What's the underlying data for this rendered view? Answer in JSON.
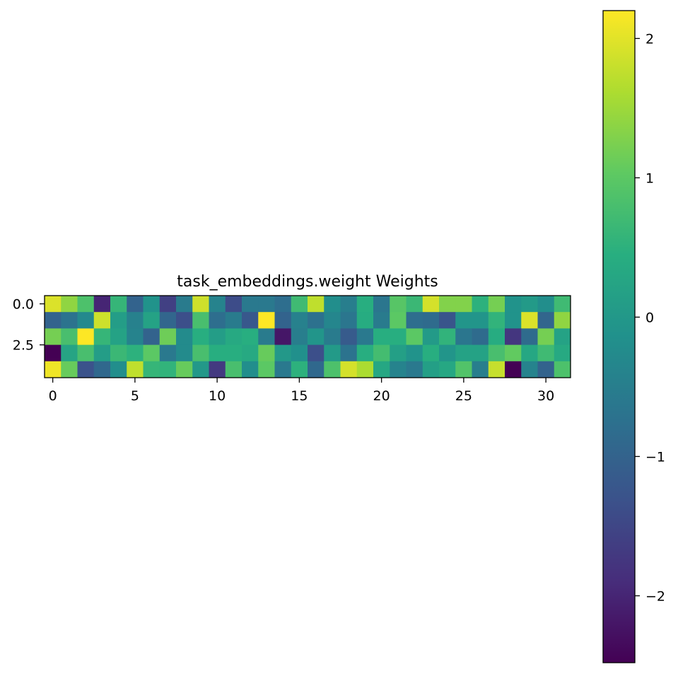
{
  "chart_data": {
    "type": "heatmap",
    "title": "task_embeddings.weight Weights",
    "xlabel": "",
    "ylabel": "",
    "colormap": "viridis",
    "rows": 5,
    "cols": 32,
    "xticks": [
      "0",
      "5",
      "10",
      "15",
      "20",
      "25",
      "30"
    ],
    "yticks": [
      "0.0",
      "2.5"
    ],
    "colorbar": {
      "vmin": -2.48,
      "vmax": 2.2,
      "ticks": [
        "2",
        "1",
        "0",
        "−1",
        "−2"
      ]
    },
    "values": [
      [
        1.95,
        1.4,
        0.85,
        -2.0,
        0.6,
        -1.0,
        -0.1,
        -1.6,
        -0.55,
        1.85,
        -0.4,
        -1.4,
        -0.6,
        -0.6,
        -0.8,
        0.7,
        1.75,
        -0.2,
        -0.5,
        0.45,
        -0.65,
        0.95,
        0.65,
        1.9,
        1.3,
        1.3,
        0.5,
        1.2,
        -0.1,
        0.05,
        -0.2,
        0.7
      ],
      [
        -1.0,
        -0.7,
        -0.3,
        1.85,
        0.1,
        -0.45,
        0.2,
        -0.95,
        -1.35,
        0.8,
        -0.8,
        -0.55,
        -1.2,
        2.2,
        -1.0,
        -0.45,
        -0.75,
        -0.35,
        -0.65,
        0.4,
        -0.55,
        1.0,
        -0.8,
        -0.85,
        -1.25,
        -0.05,
        -0.05,
        0.55,
        -0.1,
        1.95,
        -0.95,
        1.4
      ],
      [
        1.2,
        0.8,
        2.2,
        0.6,
        0.2,
        -0.4,
        -1.0,
        1.15,
        -0.25,
        0.45,
        0.1,
        0.35,
        0.45,
        -0.55,
        -2.2,
        -0.5,
        -0.05,
        -0.55,
        -1.15,
        -0.6,
        0.45,
        0.45,
        1.0,
        0.05,
        0.55,
        -0.65,
        -0.85,
        0.4,
        -1.75,
        -0.85,
        1.2,
        0.2
      ],
      [
        -2.48,
        0.25,
        0.8,
        0.1,
        0.65,
        0.5,
        1.0,
        -0.6,
        -0.25,
        0.8,
        0.45,
        0.45,
        0.35,
        1.1,
        0.0,
        -0.15,
        -1.35,
        0.05,
        -0.7,
        0.45,
        0.75,
        0.15,
        -0.1,
        0.45,
        -0.05,
        0.2,
        0.2,
        0.8,
        1.05,
        0.3,
        0.7,
        0.35
      ],
      [
        2.1,
        1.1,
        -1.3,
        -0.9,
        -0.2,
        1.75,
        0.6,
        0.55,
        1.1,
        0.0,
        -1.7,
        0.8,
        -0.2,
        1.0,
        -0.6,
        0.5,
        -0.9,
        0.85,
        1.9,
        1.6,
        0.3,
        -0.4,
        -0.6,
        0.15,
        0.3,
        0.9,
        -0.5,
        1.8,
        -2.48,
        -0.4,
        -1.0,
        0.85
      ]
    ]
  }
}
